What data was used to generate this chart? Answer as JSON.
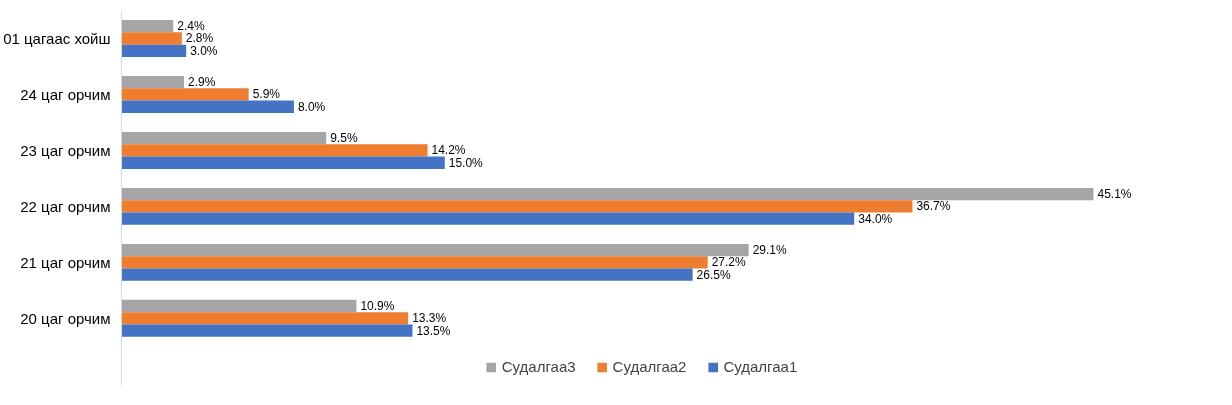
{
  "chart_data": {
    "type": "bar",
    "orientation": "horizontal",
    "categories": [
      "01 цагаас хойш",
      "24 цаг орчим",
      "23 цаг орчим",
      "22 цаг орчим",
      "21 цаг орчим",
      "20 цаг орчим"
    ],
    "series": [
      {
        "name": "Судалгаа3",
        "color": "#a5a5a5",
        "values": [
          2.4,
          2.9,
          9.5,
          45.1,
          29.1,
          10.9
        ],
        "value_labels": [
          "2.4%",
          "2.9%",
          "9.5%",
          "45.1%",
          "29.1%",
          "10.9%"
        ]
      },
      {
        "name": "Судалгаа2",
        "color": "#ed7d31",
        "values": [
          2.8,
          5.9,
          14.2,
          36.7,
          27.2,
          13.3
        ],
        "value_labels": [
          "2.8%",
          "5.9%",
          "14.2%",
          "36.7%",
          "27.2%",
          "13.3%"
        ]
      },
      {
        "name": "Судалгаа1",
        "color": "#4472c4",
        "values": [
          3.0,
          8.0,
          15.0,
          34.0,
          26.5,
          13.5
        ],
        "value_labels": [
          "3.0%",
          "8.0%",
          "15.0%",
          "34.0%",
          "26.5%",
          "13.5%"
        ]
      }
    ],
    "legend": "bottom"
  }
}
